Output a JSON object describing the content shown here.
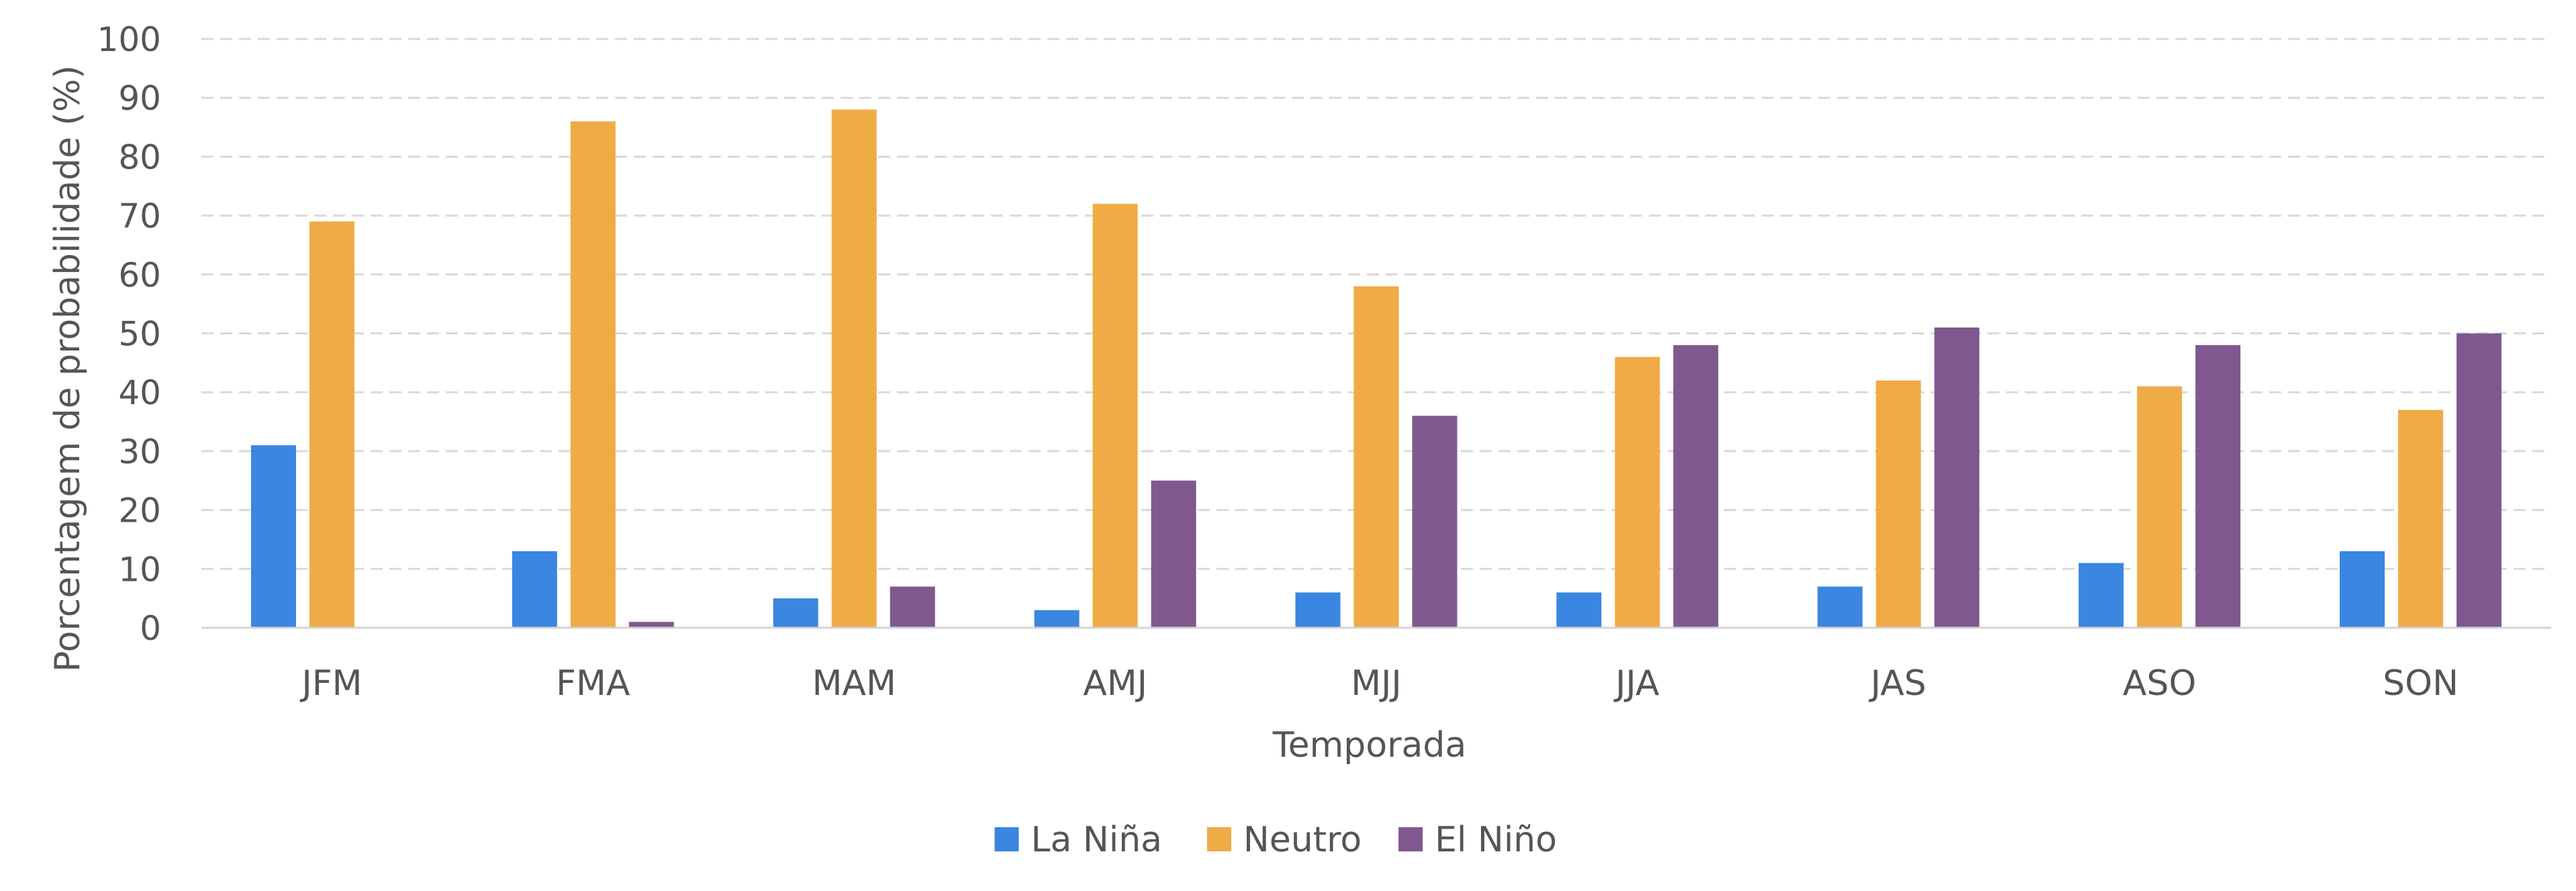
{
  "chart_data": {
    "type": "bar",
    "categories": [
      "JFM",
      "FMA",
      "MAM",
      "AMJ",
      "MJJ",
      "JJA",
      "JAS",
      "ASO",
      "SON"
    ],
    "series": [
      {
        "name": "La Niña",
        "color": "#3a86e0",
        "values": [
          31,
          13,
          5,
          3,
          6,
          6,
          7,
          11,
          13
        ]
      },
      {
        "name": "Neutro",
        "color": "#efab46",
        "values": [
          69,
          86,
          88,
          72,
          58,
          46,
          42,
          41,
          37
        ]
      },
      {
        "name": "El Niño",
        "color": "#7f588f",
        "values": [
          0,
          1,
          7,
          25,
          36,
          48,
          51,
          48,
          50
        ]
      }
    ],
    "title": "",
    "xlabel": "Temporada",
    "ylabel": "Porcentagem de probabilidade (%)",
    "ylim": [
      0,
      100
    ],
    "yticks": [
      0,
      10,
      20,
      30,
      40,
      50,
      60,
      70,
      80,
      90,
      100
    ],
    "grid": true,
    "legend_position": "bottom-center"
  }
}
